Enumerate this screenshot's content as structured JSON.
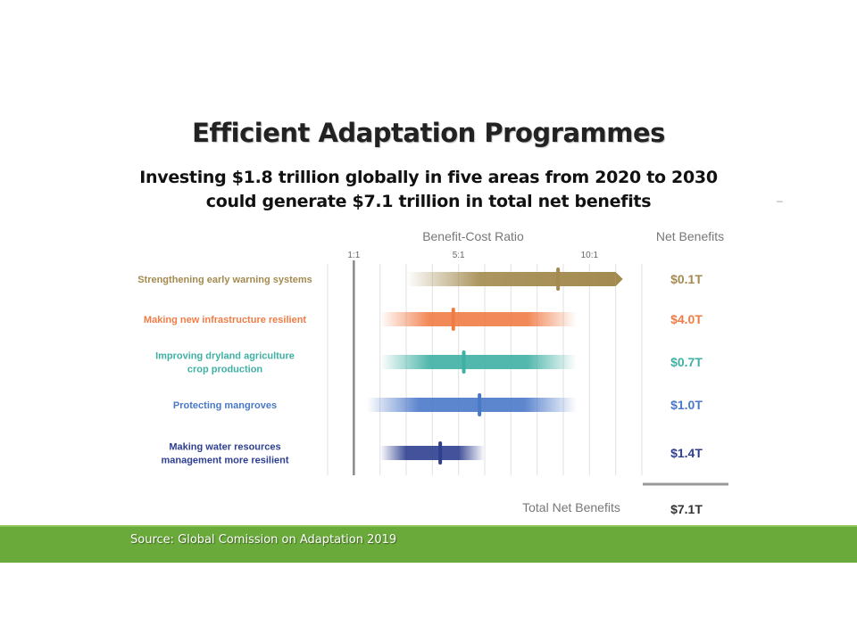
{
  "slide": {
    "title": "Efficient Adaptation Programmes",
    "subtitle_line1": "Investing $1.8 trillion globally in five areas from 2020 to 2030",
    "subtitle_line2": "could generate $7.1 trillion in total net benefits",
    "dash": "–",
    "source": "Source: Global Comission on Adaptation 2019"
  },
  "chart_data": {
    "type": "bar",
    "subtype": "range-with-marker",
    "xlabel": "Benefit-Cost Ratio",
    "value_column_label": "Net Benefits",
    "x_ticks": [
      {
        "value": 1,
        "label": "1:1"
      },
      {
        "value": 5,
        "label": "5:1"
      },
      {
        "value": 10,
        "label": "10:1"
      }
    ],
    "xlim": [
      0,
      12
    ],
    "grid": true,
    "series": [
      {
        "label_lines": [
          "Strengthening early warning systems"
        ],
        "range": [
          3,
          11
        ],
        "open_ended": true,
        "marker": 8.8,
        "net_benefit": "$0.1T",
        "color": "#a38a4f"
      },
      {
        "label_lines": [
          "Making new infrastructure resilient"
        ],
        "range": [
          2,
          9.5
        ],
        "open_ended": false,
        "marker": 4.8,
        "net_benefit": "$4.0T",
        "color": "#f07c45"
      },
      {
        "label_lines": [
          "Improving dryland agriculture",
          "crop production"
        ],
        "range": [
          2,
          9.5
        ],
        "open_ended": false,
        "marker": 5.2,
        "net_benefit": "$0.7T",
        "color": "#3fb0a4"
      },
      {
        "label_lines": [
          "Protecting mangroves"
        ],
        "range": [
          1.5,
          9.5
        ],
        "open_ended": false,
        "marker": 5.8,
        "net_benefit": "$1.0T",
        "color": "#4a78c8"
      },
      {
        "label_lines": [
          "Making water resources",
          "management more resilient"
        ],
        "range": [
          2,
          6
        ],
        "open_ended": false,
        "marker": 4.3,
        "net_benefit": "$1.4T",
        "color": "#2e3f8f"
      }
    ],
    "total_label": "Total Net Benefits",
    "total_value": "$7.1T"
  }
}
